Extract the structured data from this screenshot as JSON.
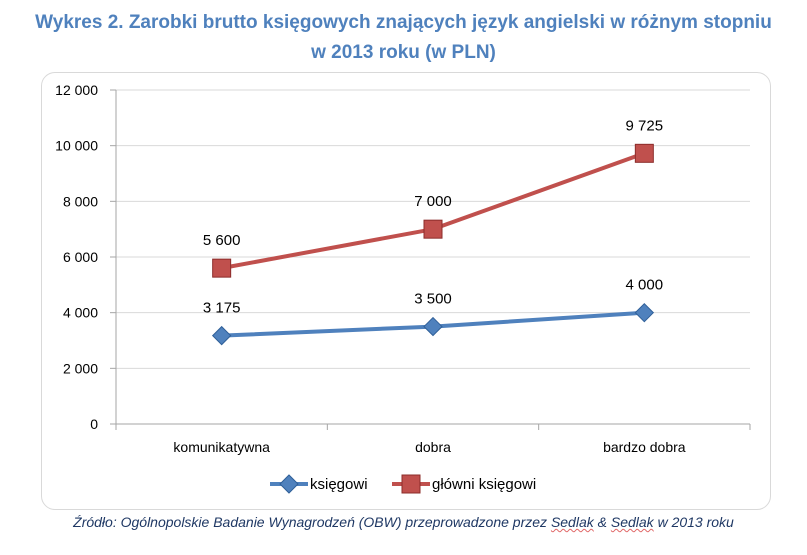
{
  "title_line1": "Wykres 2. Zarobki brutto księgowych znających język angielski w różnym stopniu",
  "title_line2": "w 2013 roku (w PLN)",
  "source": {
    "prefix": "Źródło: Ogólnopolskie Badanie Wynagrodzeń (OBW) przeprowadzone przez ",
    "word1": "Sedlak",
    "amp": " & ",
    "word2": "Sedlak",
    "suffix": " w 2013 roku"
  },
  "chart_data": {
    "type": "line",
    "categories": [
      "komunikatywna",
      "dobra",
      "bardzo dobra"
    ],
    "ylim": [
      0,
      12000
    ],
    "yticks": [
      0,
      2000,
      4000,
      6000,
      8000,
      10000,
      12000
    ],
    "ytick_labels": [
      "0",
      "2 000",
      "4 000",
      "6 000",
      "8 000",
      "10 000",
      "12 000"
    ],
    "grid": true,
    "legend_position": "bottom",
    "series": [
      {
        "name": "księgowi",
        "values": [
          3175,
          3500,
          4000
        ],
        "labels": [
          "3 175",
          "3 500",
          "4 000"
        ],
        "color": "#4f81bd",
        "marker": "diamond"
      },
      {
        "name": "główni księgowi",
        "values": [
          5600,
          7000,
          9725
        ],
        "labels": [
          "5 600",
          "7 000",
          "9 725"
        ],
        "color": "#c0504d",
        "marker": "square"
      }
    ]
  }
}
